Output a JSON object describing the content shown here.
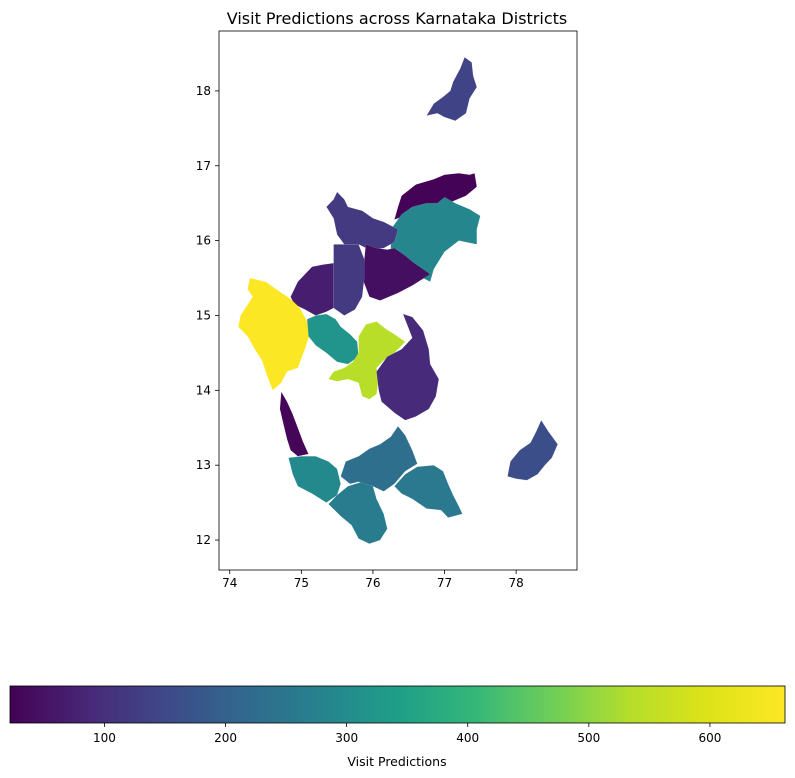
{
  "chart_data": {
    "type": "choropleth",
    "title": "Visit Predictions across Karnataka Districts",
    "xlim": [
      73.85,
      78.85
    ],
    "ylim": [
      11.6,
      18.8
    ],
    "xticks": [
      74,
      75,
      76,
      77,
      78
    ],
    "yticks": [
      12,
      13,
      14,
      15,
      16,
      17,
      18
    ],
    "colormap": "viridis",
    "colorbar": {
      "label": "Visit Predictions",
      "range": [
        22,
        662
      ],
      "ticks": [
        100,
        200,
        300,
        400,
        500,
        600
      ]
    },
    "regions": [
      {
        "value": 140,
        "points": [
          [
            76.75,
            17.67
          ],
          [
            76.85,
            17.83
          ],
          [
            76.98,
            17.92
          ],
          [
            77.08,
            18.0
          ],
          [
            77.12,
            18.12
          ],
          [
            77.22,
            18.3
          ],
          [
            77.28,
            18.45
          ],
          [
            77.38,
            18.38
          ],
          [
            77.4,
            18.2
          ],
          [
            77.45,
            18.05
          ],
          [
            77.35,
            17.9
          ],
          [
            77.3,
            17.7
          ],
          [
            77.15,
            17.6
          ],
          [
            77.0,
            17.65
          ],
          [
            76.9,
            17.7
          ]
        ]
      },
      {
        "value": 25,
        "points": [
          [
            76.3,
            16.28
          ],
          [
            76.35,
            16.45
          ],
          [
            76.4,
            16.6
          ],
          [
            76.6,
            16.75
          ],
          [
            76.85,
            16.82
          ],
          [
            77.0,
            16.88
          ],
          [
            77.2,
            16.9
          ],
          [
            77.35,
            16.88
          ],
          [
            77.42,
            16.9
          ],
          [
            77.45,
            16.72
          ],
          [
            77.3,
            16.6
          ],
          [
            77.1,
            16.52
          ],
          [
            76.9,
            16.5
          ],
          [
            76.7,
            16.42
          ],
          [
            76.5,
            16.35
          ]
        ]
      },
      {
        "value": 290,
        "points": [
          [
            76.25,
            16.15
          ],
          [
            76.4,
            16.35
          ],
          [
            76.55,
            16.45
          ],
          [
            76.75,
            16.5
          ],
          [
            76.9,
            16.5
          ],
          [
            77.0,
            16.58
          ],
          [
            77.15,
            16.5
          ],
          [
            77.35,
            16.42
          ],
          [
            77.5,
            16.33
          ],
          [
            77.45,
            16.15
          ],
          [
            77.45,
            15.95
          ],
          [
            77.2,
            16.0
          ],
          [
            77.0,
            15.85
          ],
          [
            76.85,
            15.62
          ],
          [
            76.8,
            15.45
          ],
          [
            76.6,
            15.55
          ],
          [
            76.4,
            15.68
          ],
          [
            76.25,
            15.85
          ]
        ]
      },
      {
        "value": 120,
        "points": [
          [
            75.35,
            16.45
          ],
          [
            75.45,
            16.55
          ],
          [
            75.5,
            16.65
          ],
          [
            75.6,
            16.55
          ],
          [
            75.65,
            16.45
          ],
          [
            75.85,
            16.4
          ],
          [
            76.0,
            16.3
          ],
          [
            76.15,
            16.25
          ],
          [
            76.35,
            16.15
          ],
          [
            76.3,
            15.98
          ],
          [
            76.15,
            15.9
          ],
          [
            75.95,
            15.88
          ],
          [
            75.8,
            15.95
          ],
          [
            75.6,
            15.95
          ],
          [
            75.5,
            16.08
          ],
          [
            75.45,
            16.3
          ]
        ]
      },
      {
        "value": 45,
        "points": [
          [
            75.9,
            15.95
          ],
          [
            76.05,
            15.9
          ],
          [
            76.2,
            15.88
          ],
          [
            76.3,
            15.9
          ],
          [
            76.45,
            15.8
          ],
          [
            76.55,
            15.72
          ],
          [
            76.7,
            15.62
          ],
          [
            76.8,
            15.55
          ],
          [
            76.55,
            15.4
          ],
          [
            76.35,
            15.3
          ],
          [
            76.1,
            15.2
          ],
          [
            75.95,
            15.25
          ],
          [
            75.85,
            15.5
          ],
          [
            75.88,
            15.75
          ]
        ]
      },
      {
        "value": 120,
        "points": [
          [
            75.45,
            15.95
          ],
          [
            75.6,
            15.95
          ],
          [
            75.8,
            15.95
          ],
          [
            75.88,
            15.75
          ],
          [
            75.88,
            15.5
          ],
          [
            75.85,
            15.25
          ],
          [
            75.75,
            15.08
          ],
          [
            75.6,
            15.0
          ],
          [
            75.45,
            15.1
          ],
          [
            75.45,
            15.3
          ],
          [
            75.45,
            15.6
          ]
        ]
      },
      {
        "value": 70,
        "points": [
          [
            74.85,
            15.25
          ],
          [
            74.95,
            15.45
          ],
          [
            75.05,
            15.55
          ],
          [
            75.15,
            15.65
          ],
          [
            75.3,
            15.68
          ],
          [
            75.45,
            15.7
          ],
          [
            75.45,
            15.4
          ],
          [
            75.45,
            15.1
          ],
          [
            75.35,
            15.05
          ],
          [
            75.2,
            15.0
          ],
          [
            75.05,
            15.08
          ],
          [
            74.9,
            15.15
          ]
        ]
      },
      {
        "value": 660,
        "points": [
          [
            74.28,
            15.5
          ],
          [
            74.25,
            15.35
          ],
          [
            74.32,
            15.25
          ],
          [
            74.15,
            15.0
          ],
          [
            74.12,
            14.85
          ],
          [
            74.25,
            14.72
          ],
          [
            74.35,
            14.55
          ],
          [
            74.45,
            14.4
          ],
          [
            74.52,
            14.2
          ],
          [
            74.6,
            14.0
          ],
          [
            74.72,
            14.1
          ],
          [
            74.8,
            14.25
          ],
          [
            74.95,
            14.3
          ],
          [
            75.05,
            14.55
          ],
          [
            75.12,
            14.75
          ],
          [
            75.08,
            14.92
          ],
          [
            74.98,
            15.1
          ],
          [
            74.85,
            15.22
          ],
          [
            74.65,
            15.35
          ],
          [
            74.5,
            15.45
          ]
        ]
      },
      {
        "value": 320,
        "points": [
          [
            75.08,
            14.95
          ],
          [
            75.2,
            15.0
          ],
          [
            75.35,
            15.02
          ],
          [
            75.48,
            14.95
          ],
          [
            75.55,
            14.85
          ],
          [
            75.68,
            14.75
          ],
          [
            75.78,
            14.65
          ],
          [
            75.8,
            14.45
          ],
          [
            75.65,
            14.35
          ],
          [
            75.5,
            14.38
          ],
          [
            75.35,
            14.5
          ],
          [
            75.2,
            14.6
          ],
          [
            75.1,
            14.72
          ]
        ]
      },
      {
        "value": 540,
        "points": [
          [
            75.8,
            14.5
          ],
          [
            75.8,
            14.72
          ],
          [
            75.9,
            14.88
          ],
          [
            76.05,
            14.92
          ],
          [
            76.18,
            14.82
          ],
          [
            76.3,
            14.75
          ],
          [
            76.45,
            14.65
          ],
          [
            76.3,
            14.5
          ],
          [
            76.15,
            14.4
          ],
          [
            76.05,
            14.3
          ],
          [
            76.08,
            14.15
          ],
          [
            76.05,
            13.95
          ],
          [
            75.95,
            13.88
          ],
          [
            75.85,
            13.92
          ],
          [
            75.8,
            14.1
          ],
          [
            75.65,
            14.15
          ],
          [
            75.5,
            14.12
          ],
          [
            75.38,
            14.15
          ],
          [
            75.45,
            14.25
          ],
          [
            75.6,
            14.3
          ],
          [
            75.72,
            14.38
          ]
        ]
      },
      {
        "value": 90,
        "points": [
          [
            76.05,
            14.25
          ],
          [
            76.08,
            14.0
          ],
          [
            76.12,
            13.85
          ],
          [
            76.3,
            13.7
          ],
          [
            76.45,
            13.6
          ],
          [
            76.6,
            13.65
          ],
          [
            76.78,
            13.75
          ],
          [
            76.88,
            13.92
          ],
          [
            76.92,
            14.15
          ],
          [
            76.8,
            14.35
          ],
          [
            76.78,
            14.55
          ],
          [
            76.7,
            14.8
          ],
          [
            76.55,
            14.98
          ],
          [
            76.42,
            15.02
          ],
          [
            76.55,
            14.7
          ],
          [
            76.4,
            14.55
          ],
          [
            76.2,
            14.45
          ]
        ]
      },
      {
        "value": 30,
        "points": [
          [
            74.72,
            13.98
          ],
          [
            74.8,
            13.85
          ],
          [
            74.88,
            13.68
          ],
          [
            74.95,
            13.5
          ],
          [
            75.02,
            13.32
          ],
          [
            75.1,
            13.15
          ],
          [
            74.95,
            13.12
          ],
          [
            74.85,
            13.2
          ],
          [
            74.8,
            13.35
          ],
          [
            74.75,
            13.55
          ],
          [
            74.7,
            13.75
          ]
        ]
      },
      {
        "value": 295,
        "points": [
          [
            74.82,
            13.1
          ],
          [
            75.0,
            13.12
          ],
          [
            75.2,
            13.12
          ],
          [
            75.38,
            13.05
          ],
          [
            75.5,
            12.95
          ],
          [
            75.55,
            12.75
          ],
          [
            75.5,
            12.6
          ],
          [
            75.35,
            12.5
          ],
          [
            75.15,
            12.62
          ],
          [
            74.95,
            12.72
          ],
          [
            74.88,
            12.88
          ]
        ]
      },
      {
        "value": 260,
        "points": [
          [
            75.38,
            12.48
          ],
          [
            75.5,
            12.6
          ],
          [
            75.65,
            12.72
          ],
          [
            75.85,
            12.78
          ],
          [
            76.0,
            12.72
          ],
          [
            76.05,
            12.55
          ],
          [
            76.15,
            12.35
          ],
          [
            76.2,
            12.15
          ],
          [
            76.1,
            12.0
          ],
          [
            75.95,
            11.95
          ],
          [
            75.8,
            12.02
          ],
          [
            75.7,
            12.2
          ],
          [
            75.55,
            12.32
          ]
        ]
      },
      {
        "value": 230,
        "points": [
          [
            75.55,
            12.85
          ],
          [
            75.62,
            13.05
          ],
          [
            75.8,
            13.12
          ],
          [
            75.95,
            13.22
          ],
          [
            76.1,
            13.28
          ],
          [
            76.25,
            13.38
          ],
          [
            76.35,
            13.52
          ],
          [
            76.45,
            13.4
          ],
          [
            76.55,
            13.2
          ],
          [
            76.62,
            13.02
          ],
          [
            76.45,
            12.92
          ],
          [
            76.3,
            12.75
          ],
          [
            76.15,
            12.65
          ],
          [
            76.0,
            12.72
          ],
          [
            75.8,
            12.78
          ],
          [
            75.68,
            12.75
          ]
        ]
      },
      {
        "value": 255,
        "points": [
          [
            76.3,
            12.72
          ],
          [
            76.45,
            12.88
          ],
          [
            76.62,
            12.98
          ],
          [
            76.85,
            13.0
          ],
          [
            76.98,
            12.92
          ],
          [
            77.05,
            12.75
          ],
          [
            77.12,
            12.6
          ],
          [
            77.2,
            12.45
          ],
          [
            77.25,
            12.35
          ],
          [
            77.05,
            12.3
          ],
          [
            76.95,
            12.4
          ],
          [
            76.75,
            12.42
          ],
          [
            76.55,
            12.55
          ],
          [
            76.4,
            12.62
          ]
        ]
      },
      {
        "value": 160,
        "points": [
          [
            77.88,
            12.85
          ],
          [
            77.92,
            13.05
          ],
          [
            78.05,
            13.2
          ],
          [
            78.2,
            13.3
          ],
          [
            78.28,
            13.45
          ],
          [
            78.35,
            13.6
          ],
          [
            78.45,
            13.45
          ],
          [
            78.58,
            13.28
          ],
          [
            78.5,
            13.1
          ],
          [
            78.4,
            13.0
          ],
          [
            78.3,
            12.88
          ],
          [
            78.15,
            12.8
          ],
          [
            78.0,
            12.82
          ]
        ]
      }
    ]
  }
}
